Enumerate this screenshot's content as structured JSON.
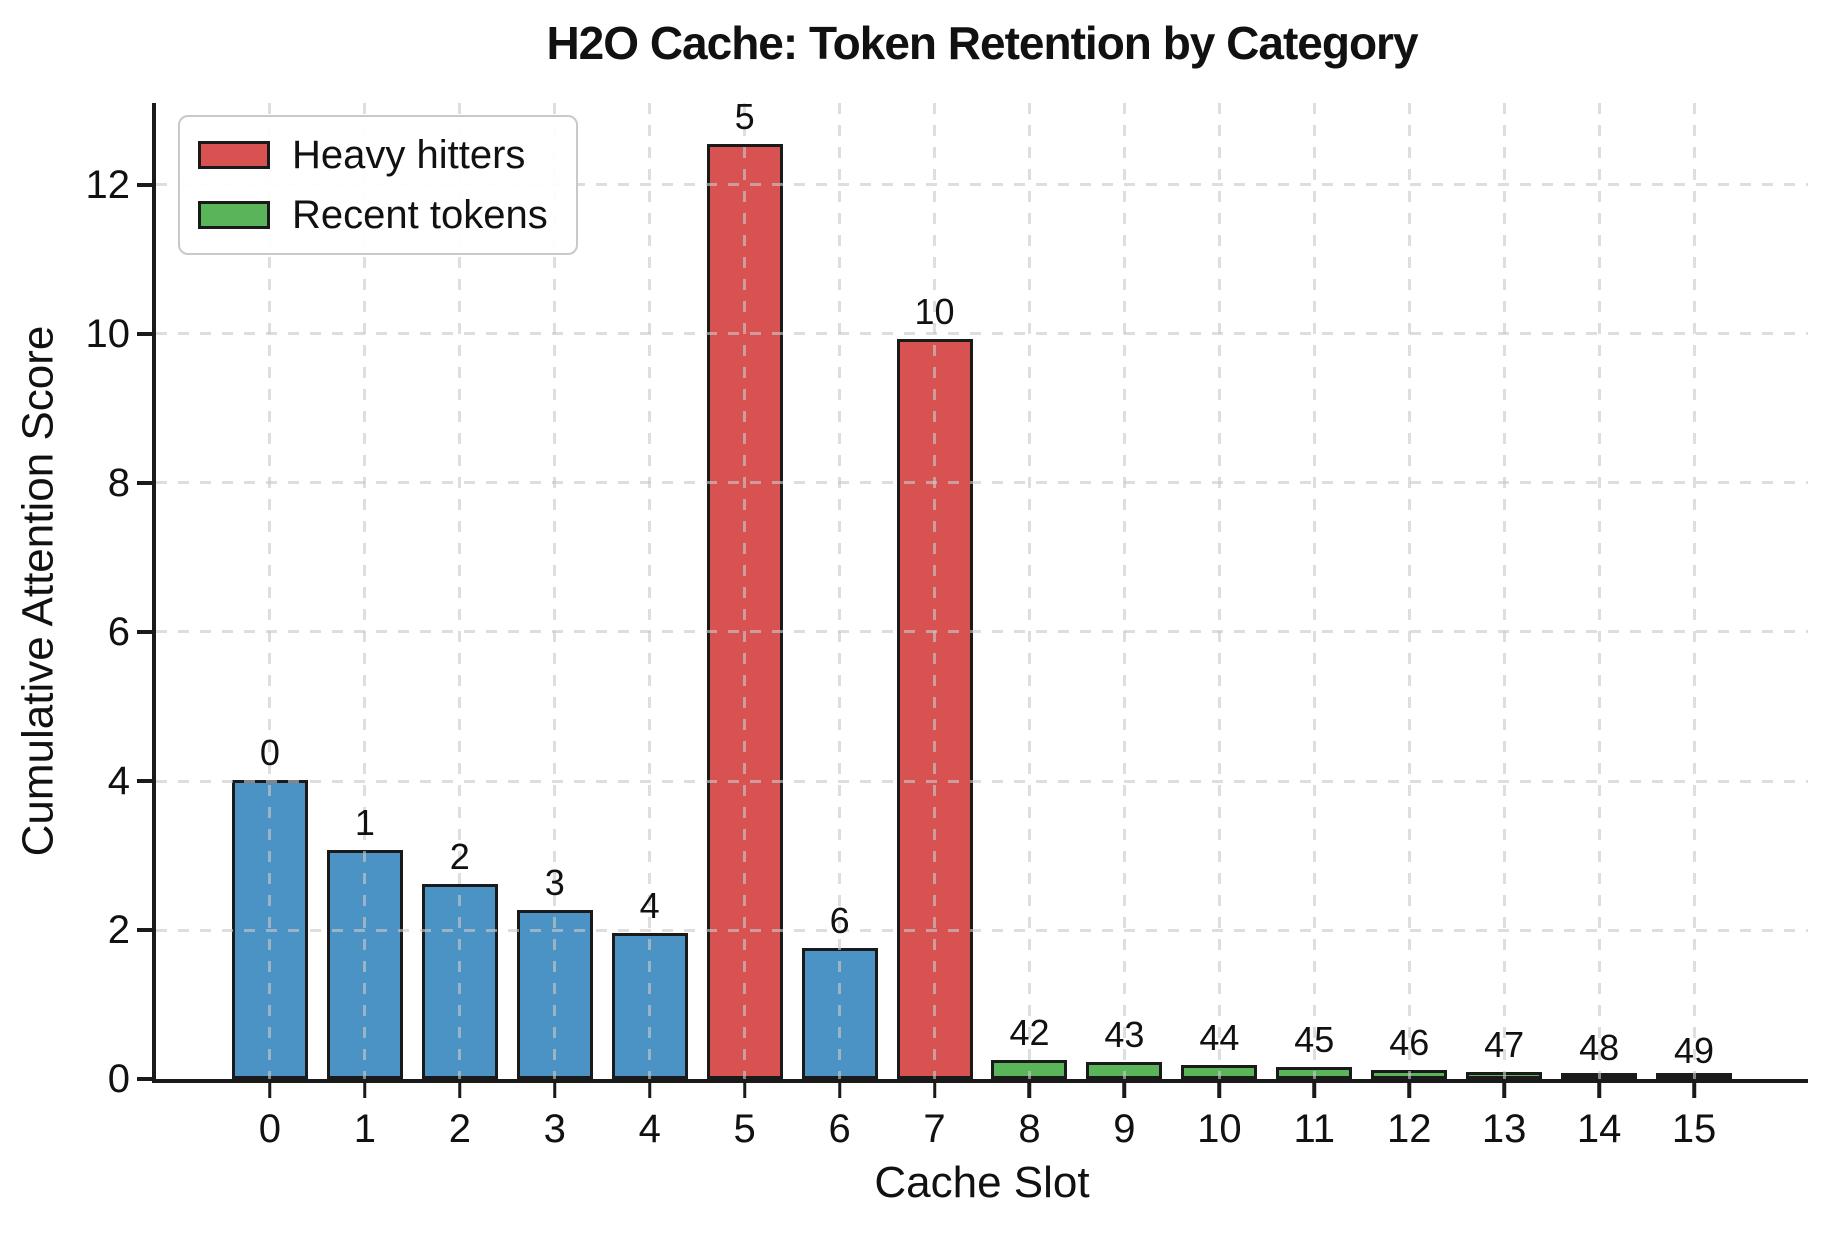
{
  "chart_data": {
    "type": "bar",
    "title": "H2O Cache: Token Retention by Category",
    "xlabel": "Cache Slot",
    "ylabel": "Cumulative Attention Score",
    "categories": [
      "0",
      "1",
      "2",
      "3",
      "4",
      "5",
      "6",
      "7",
      "8",
      "9",
      "10",
      "11",
      "12",
      "13",
      "14",
      "15"
    ],
    "bars": [
      {
        "slot": "0",
        "token_label": "0",
        "value": 4.02,
        "group": "default"
      },
      {
        "slot": "1",
        "token_label": "1",
        "value": 3.07,
        "group": "default"
      },
      {
        "slot": "2",
        "token_label": "2",
        "value": 2.62,
        "group": "default"
      },
      {
        "slot": "3",
        "token_label": "3",
        "value": 2.27,
        "group": "default"
      },
      {
        "slot": "4",
        "token_label": "4",
        "value": 1.96,
        "group": "default"
      },
      {
        "slot": "5",
        "token_label": "5",
        "value": 12.55,
        "group": "heavy"
      },
      {
        "slot": "6",
        "token_label": "6",
        "value": 1.76,
        "group": "default"
      },
      {
        "slot": "7",
        "token_label": "10",
        "value": 9.93,
        "group": "heavy"
      },
      {
        "slot": "8",
        "token_label": "42",
        "value": 0.26,
        "group": "recent"
      },
      {
        "slot": "9",
        "token_label": "43",
        "value": 0.23,
        "group": "recent"
      },
      {
        "slot": "10",
        "token_label": "44",
        "value": 0.19,
        "group": "recent"
      },
      {
        "slot": "11",
        "token_label": "45",
        "value": 0.16,
        "group": "recent"
      },
      {
        "slot": "12",
        "token_label": "46",
        "value": 0.12,
        "group": "recent"
      },
      {
        "slot": "13",
        "token_label": "47",
        "value": 0.09,
        "group": "recent"
      },
      {
        "slot": "14",
        "token_label": "48",
        "value": 0.05,
        "group": "recent"
      },
      {
        "slot": "15",
        "token_label": "49",
        "value": 0.02,
        "group": "recent"
      }
    ],
    "group_colors": {
      "default": "#4b93c4",
      "heavy": "#d95252",
      "recent": "#5ab45a"
    },
    "bar_edge_color": "#1a1a1a",
    "ylim": [
      0,
      13.1
    ],
    "yticks": [
      0,
      2,
      4,
      6,
      8,
      10,
      12
    ],
    "grid": {
      "visible": true,
      "style": "dashed",
      "axes": "both",
      "color": "#c9c9c9",
      "drawn_over_bars": true
    },
    "legend": {
      "position": "upper left",
      "entries": [
        {
          "label": "Heavy hitters",
          "color": "#d95252"
        },
        {
          "label": "Recent tokens",
          "color": "#5ab45a"
        }
      ]
    },
    "background": "#ffffff",
    "spine_color": "#1a1a1a"
  }
}
